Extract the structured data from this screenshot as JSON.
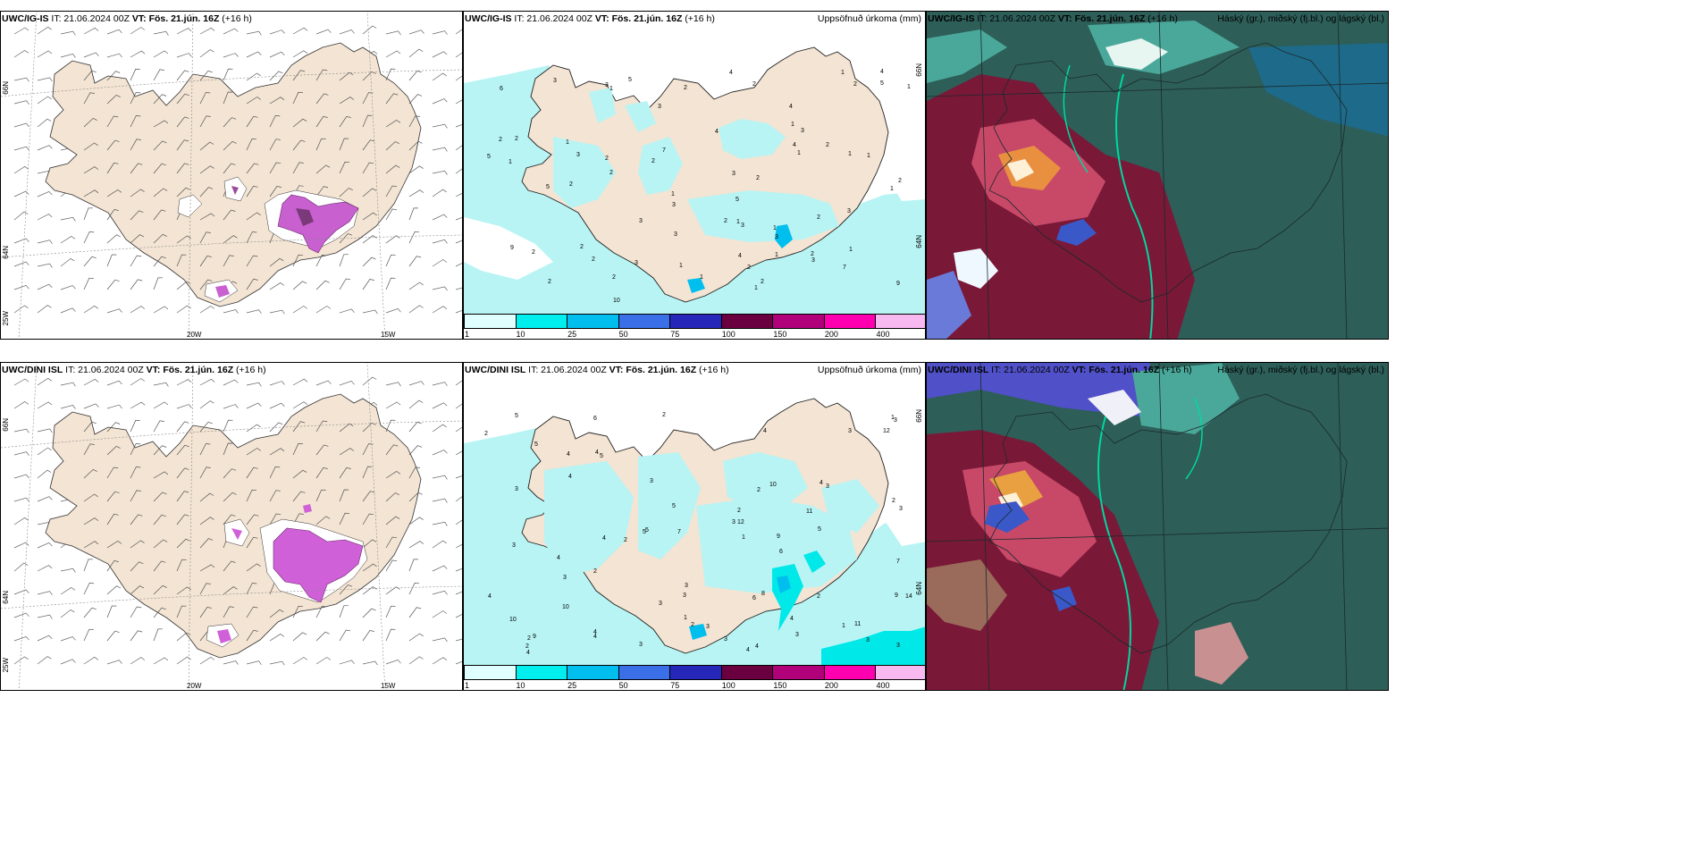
{
  "panels": [
    {
      "model": "UWC/IG-IS",
      "it_label": "IT: 21.06.2024 00Z",
      "vt_label": "VT: Fös. 21.jún. 16Z",
      "lead": "(+16 h)",
      "right_label": "",
      "axis": {
        "lon_a": "20W",
        "lon_b": "15W",
        "lat_a": "66N",
        "lat_b": "64N",
        "lat_c": "25W"
      }
    },
    {
      "model": "UWC/IG-IS",
      "it_label": "IT: 21.06.2024 00Z",
      "vt_label": "VT: Fös. 21.jún. 16Z",
      "lead": "(+16 h)",
      "right_label": "Uppsöfnuð úrkoma (mm)",
      "axis": {
        "lat_a": "66N",
        "lat_b": "64N"
      }
    },
    {
      "model": "UWC/IG-IS",
      "it_label": "IT: 21.06.2024 00Z",
      "vt_label": "VT: Fös. 21.jún. 16Z",
      "lead": "(+16 h)",
      "right_label": "Háský (gr.), miðský (fj.bl.) og lágský (bl.)"
    },
    {
      "model": "UWC/DINI ISL",
      "it_label": "IT: 21.06.2024 00Z",
      "vt_label": "VT: Fös. 21.jún. 16Z",
      "lead": "(+16 h)",
      "right_label": "",
      "axis": {
        "lon_a": "20W",
        "lon_b": "15W",
        "lat_a": "66N",
        "lat_b": "64N",
        "lat_c": "25W"
      }
    },
    {
      "model": "UWC/DINI ISL",
      "it_label": "IT: 21.06.2024 00Z",
      "vt_label": "VT: Fös. 21.jún. 16Z",
      "lead": "(+16 h)",
      "right_label": "Uppsöfnuð úrkoma (mm)",
      "axis": {
        "lat_a": "66N",
        "lat_b": "64N"
      }
    },
    {
      "model": "UWC/DINI ISL",
      "it_label": "IT: 21.06.2024 00Z",
      "vt_label": "VT: Fös. 21.jún. 16Z",
      "lead": "(+16 h)",
      "right_label": "Háský (gr.), miðský (fj.bl.) og lágský (bl.)"
    }
  ],
  "precip_legend": {
    "labels": [
      "1",
      "10",
      "25",
      "50",
      "75",
      "100",
      "150",
      "200",
      "400"
    ],
    "colors": [
      "#e0ffff",
      "#00eeee",
      "#00bfef",
      "#3a6fe8",
      "#2626b8",
      "#6b0040",
      "#b0007a",
      "#ff00b0",
      "#f8b8f0"
    ]
  },
  "precip_numbers_top": [
    "2",
    "1",
    "2",
    "1",
    "2",
    "2",
    "1",
    "2",
    "3",
    "2",
    "2",
    "2",
    "1",
    "1",
    "1",
    "1",
    "1",
    "2",
    "2",
    "1",
    "2",
    "3",
    "2",
    "3",
    "2",
    "3",
    "2",
    "3",
    "1",
    "3",
    "3",
    "4",
    "4",
    "3",
    "5",
    "1",
    "4",
    "2",
    "2",
    "1",
    "2",
    "3",
    "1",
    "1",
    "2",
    "3",
    "2",
    "3",
    "5",
    "5",
    "3",
    "4",
    "2",
    "1",
    "6",
    "9",
    "7",
    "7",
    "10",
    "9",
    "5",
    "1",
    "4",
    "5",
    "3",
    "2",
    "3",
    "4",
    "1",
    "2",
    "1"
  ],
  "precip_numbers_bottom": [
    "3",
    "4",
    "4",
    "4",
    "6",
    "5",
    "4",
    "3",
    "2",
    "3",
    "3",
    "2",
    "5",
    "3",
    "4",
    "3",
    "3",
    "4",
    "2",
    "2",
    "6",
    "3",
    "2",
    "2",
    "3",
    "4",
    "4",
    "3",
    "5",
    "6",
    "7",
    "4",
    "3",
    "12",
    "10",
    "9",
    "9",
    "10",
    "10",
    "11",
    "12",
    "11",
    "14",
    "9",
    "5",
    "8",
    "7",
    "3",
    "4",
    "1",
    "1",
    "2",
    "3",
    "2",
    "2",
    "4",
    "5",
    "5",
    "4",
    "3",
    "1",
    "3",
    "4",
    "5",
    "3",
    "2",
    "1",
    "3",
    "4",
    "2",
    "3"
  ],
  "colors": {
    "land": "#f3e4d3",
    "sea": "#ffffff",
    "precip_light": "#b8f4f4",
    "snow_purple": "#d45cd4",
    "cloud_high": "#2d5e58",
    "cloud_mid": "#7a1838",
    "cloud_low": "#3a58c8"
  }
}
